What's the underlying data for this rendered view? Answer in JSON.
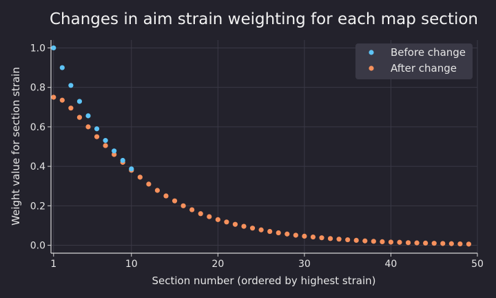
{
  "chart_data": {
    "type": "scatter",
    "title": "Changes in aim strain weighting for each map section",
    "xlabel": "Section number (ordered by highest strain)",
    "ylabel": "Weight value for section strain",
    "xlim": [
      0.7,
      50
    ],
    "ylim": [
      -0.04,
      1.04
    ],
    "xticks": [
      1,
      10,
      20,
      30,
      40,
      50
    ],
    "yticks": [
      0.0,
      0.2,
      0.4,
      0.6,
      0.8,
      1.0
    ],
    "ytick_labels": [
      "0.0",
      "0.2",
      "0.4",
      "0.6",
      "0.8",
      "1.0"
    ],
    "grid": true,
    "legend_position": "top-right",
    "series": [
      {
        "name": "Before change",
        "color": "#5ec4f6",
        "x": [
          1,
          2,
          3,
          4,
          5,
          6,
          7,
          8,
          9,
          10
        ],
        "y": [
          1.0,
          0.9,
          0.81,
          0.729,
          0.656,
          0.59,
          0.531,
          0.478,
          0.43,
          0.387
        ]
      },
      {
        "name": "After change",
        "color": "#f6915d",
        "x": [
          1,
          2,
          3,
          4,
          5,
          6,
          7,
          8,
          9,
          10,
          11,
          12,
          13,
          14,
          15,
          16,
          17,
          18,
          19,
          20,
          21,
          22,
          23,
          24,
          25,
          26,
          27,
          28,
          29,
          30,
          31,
          32,
          33,
          34,
          35,
          36,
          37,
          38,
          39,
          40,
          41,
          42,
          43,
          44,
          45,
          46,
          47,
          48,
          49
        ],
        "y": [
          0.75,
          0.735,
          0.695,
          0.648,
          0.6,
          0.55,
          0.505,
          0.46,
          0.42,
          0.38,
          0.345,
          0.31,
          0.278,
          0.25,
          0.225,
          0.2,
          0.18,
          0.16,
          0.145,
          0.13,
          0.118,
          0.106,
          0.096,
          0.087,
          0.078,
          0.07,
          0.063,
          0.057,
          0.051,
          0.046,
          0.042,
          0.038,
          0.034,
          0.031,
          0.028,
          0.025,
          0.022,
          0.02,
          0.018,
          0.016,
          0.015,
          0.013,
          0.012,
          0.011,
          0.01,
          0.009,
          0.008,
          0.007,
          0.006
        ]
      }
    ]
  }
}
